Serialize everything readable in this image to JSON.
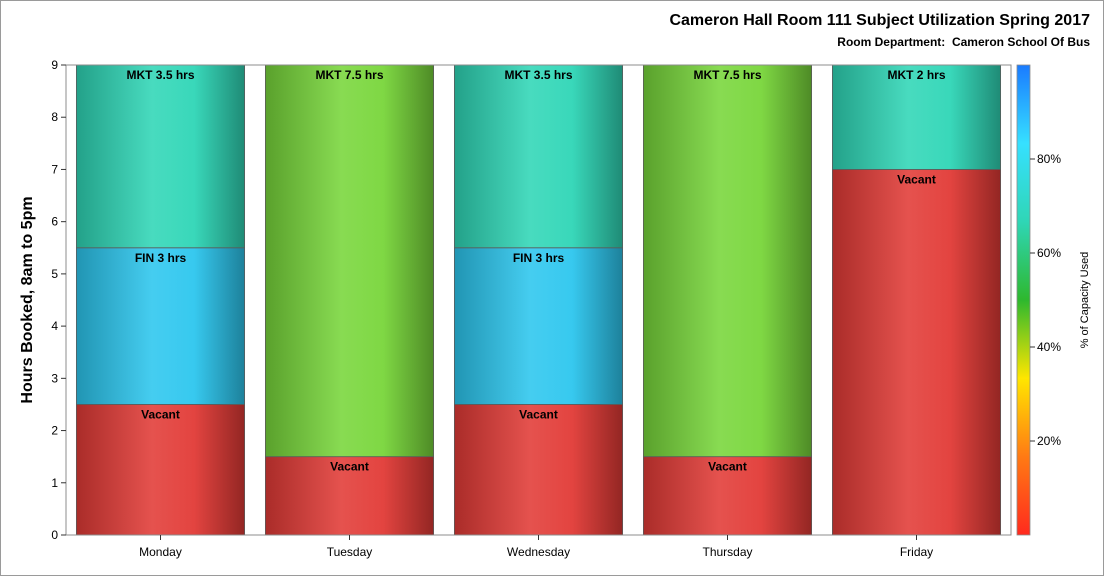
{
  "title": "Cameron Hall Room 111 Subject Utilization Spring 2017",
  "subtitle": "Room Department:  Cameron School Of Bus",
  "chart_data": {
    "type": "bar",
    "stacked": true,
    "ylabel": "Hours Booked, 8am to 5pm",
    "ylim": [
      0,
      9
    ],
    "yticks": [
      "0",
      "1",
      "2",
      "3",
      "4",
      "5",
      "6",
      "7",
      "8",
      "9"
    ],
    "categories": [
      "Monday",
      "Tuesday",
      "Wednesday",
      "Thursday",
      "Friday"
    ],
    "bars": [
      {
        "category": "Monday",
        "segments": [
          {
            "label": "Vacant",
            "value": 2.5,
            "color": "#e23a36"
          },
          {
            "label": "FIN 3 hrs",
            "value": 3,
            "color": "#2cc6ee"
          },
          {
            "label": "MKT 3.5 hrs",
            "value": 3.5,
            "color": "#2fd6b6"
          }
        ]
      },
      {
        "category": "Tuesday",
        "segments": [
          {
            "label": "Vacant",
            "value": 1.5,
            "color": "#e23a36"
          },
          {
            "label": "MKT 7.5 hrs",
            "value": 7.5,
            "color": "#78d63a"
          }
        ]
      },
      {
        "category": "Wednesday",
        "segments": [
          {
            "label": "Vacant",
            "value": 2.5,
            "color": "#e23a36"
          },
          {
            "label": "FIN 3 hrs",
            "value": 3,
            "color": "#2cc6ee"
          },
          {
            "label": "MKT 3.5 hrs",
            "value": 3.5,
            "color": "#2fd6b6"
          }
        ]
      },
      {
        "category": "Thursday",
        "segments": [
          {
            "label": "Vacant",
            "value": 1.5,
            "color": "#e23a36"
          },
          {
            "label": "MKT 7.5 hrs",
            "value": 7.5,
            "color": "#78d63a"
          }
        ]
      },
      {
        "category": "Friday",
        "segments": [
          {
            "label": "Vacant",
            "value": 7,
            "color": "#e23a36"
          },
          {
            "label": "MKT 2 hrs",
            "value": 2,
            "color": "#2fd6b6"
          }
        ]
      }
    ],
    "colorbar": {
      "title": "% of Capacity Used",
      "range": [
        0,
        100
      ],
      "ticks": [
        20,
        40,
        60,
        80
      ],
      "tick_labels": [
        "20%",
        "40%",
        "60%",
        "80%"
      ],
      "stops": [
        "#ff2a1e",
        "#ff7a14",
        "#ffe600",
        "#2eb82e",
        "#2fd6b6",
        "#36e0ff",
        "#1a7bff"
      ]
    },
    "grid": false,
    "legend": "none"
  }
}
